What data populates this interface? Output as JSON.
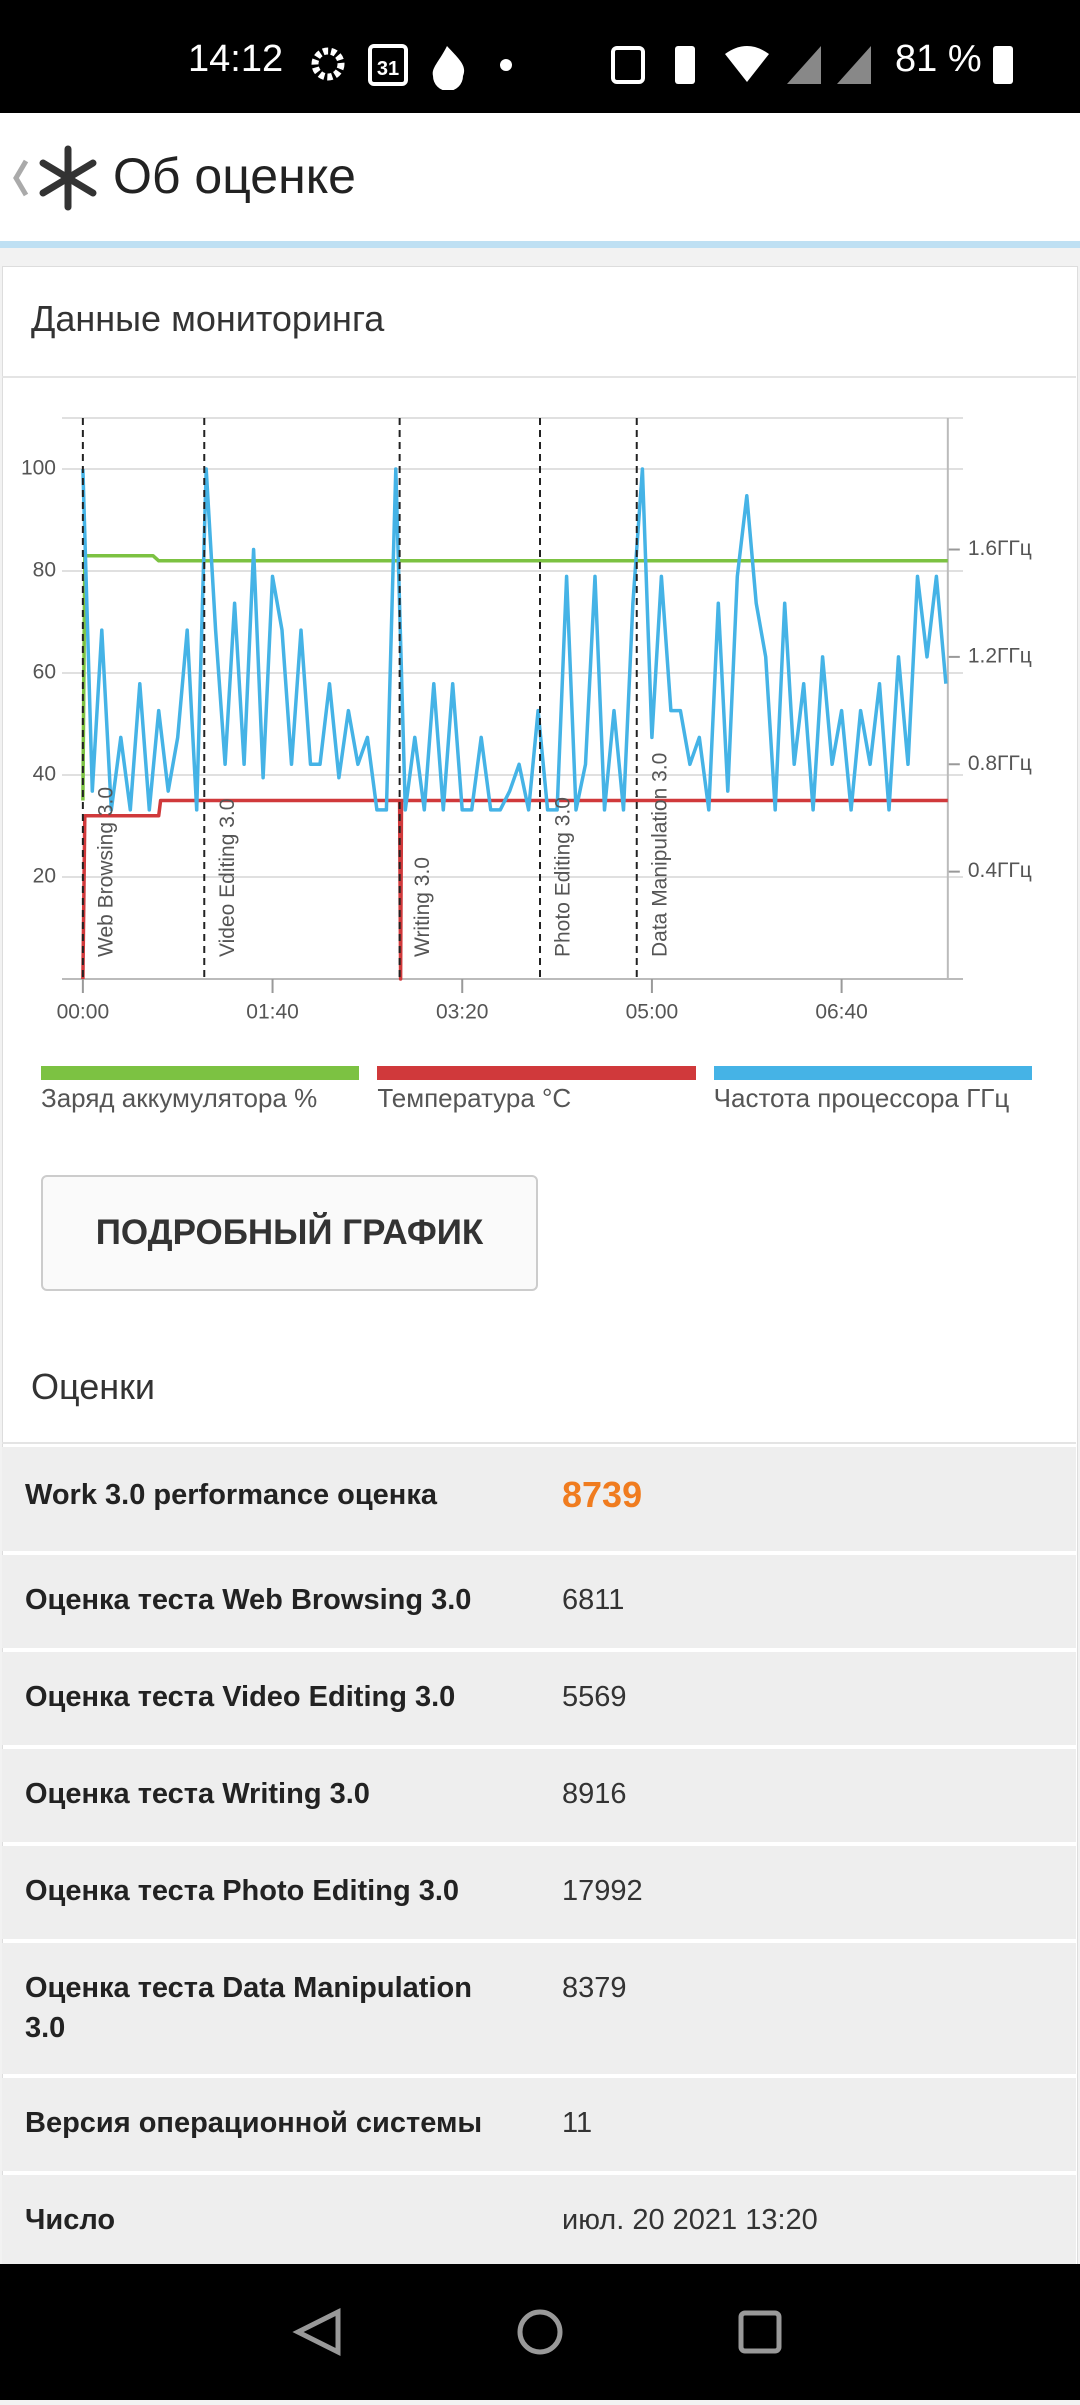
{
  "status_bar": {
    "time": "14:12",
    "calendar_day": "31",
    "battery": "81 %"
  },
  "header": {
    "title": "Об оценке"
  },
  "monitoring": {
    "title": "Данные мониторинга",
    "button": "ПОДРОБНЫЙ ГРАФИК"
  },
  "chart_data": {
    "type": "line",
    "xlim": [
      -11,
      464
    ],
    "xticks": [
      {
        "value": 0,
        "label": "00:00"
      },
      {
        "value": 100,
        "label": "01:40"
      },
      {
        "value": 200,
        "label": "03:20"
      },
      {
        "value": 300,
        "label": "05:00"
      },
      {
        "value": 400,
        "label": "06:40"
      }
    ],
    "ylim": [
      0,
      110
    ],
    "yticks": [
      20,
      40,
      60,
      80,
      100
    ],
    "y2lim": [
      0,
      2.09
    ],
    "y2ticks": [
      {
        "value": 0.4,
        "label": "0.4ГГц"
      },
      {
        "value": 0.8,
        "label": "0.8ГГц"
      },
      {
        "value": 1.2,
        "label": "1.2ГГц"
      },
      {
        "value": 1.6,
        "label": "1.6ГГц"
      }
    ],
    "grid": true,
    "legend": "bottom",
    "annotations": [
      {
        "x": 0,
        "label": "Web Browsing 3.0"
      },
      {
        "x": 64,
        "label": "Video Editing 3.0"
      },
      {
        "x": 167,
        "label": "Writing 3.0"
      },
      {
        "x": 241,
        "label": "Photo Editing 3.0"
      },
      {
        "x": 292,
        "label": "Data Manipulation 3.0"
      }
    ],
    "series": [
      {
        "name": "Заряд аккумулятора %",
        "color": "#7cc242",
        "x": [
          0,
          1,
          37,
          40,
          456
        ],
        "values": [
          35,
          83,
          83,
          82,
          82
        ]
      },
      {
        "name": "Температура °C",
        "color": "#d0393b",
        "x": [
          0,
          1,
          40,
          41,
          167,
          167.5,
          168,
          456
        ],
        "values": [
          0,
          32,
          32,
          35,
          35,
          0,
          35,
          35
        ]
      },
      {
        "name": "Частота процессора ГГц",
        "color": "#45b3e6",
        "axis": "y2",
        "x": [
          0,
          5,
          10,
          15,
          20,
          25,
          30,
          35,
          40,
          45,
          50,
          55,
          60,
          65,
          70,
          75,
          80,
          85,
          90,
          95,
          100,
          105,
          110,
          115,
          120,
          125,
          130,
          135,
          140,
          145,
          150,
          155,
          160,
          165,
          170,
          175,
          180,
          185,
          190,
          195,
          200,
          205,
          210,
          215,
          220,
          225,
          230,
          235,
          240,
          245,
          250,
          255,
          260,
          265,
          270,
          275,
          280,
          285,
          290,
          295,
          300,
          305,
          310,
          315,
          320,
          325,
          330,
          335,
          340,
          345,
          350,
          355,
          360,
          365,
          370,
          375,
          380,
          385,
          390,
          395,
          400,
          405,
          410,
          415,
          420,
          425,
          430,
          435,
          440,
          445,
          450,
          455
        ],
        "values": [
          1.9,
          0.7,
          1.3,
          0.63,
          0.9,
          0.63,
          1.1,
          0.63,
          1.0,
          0.7,
          0.9,
          1.3,
          0.63,
          1.9,
          1.3,
          0.8,
          1.4,
          0.8,
          1.6,
          0.75,
          1.5,
          1.3,
          0.8,
          1.3,
          0.8,
          0.8,
          1.1,
          0.75,
          1.0,
          0.8,
          0.9,
          0.63,
          0.63,
          1.9,
          0.63,
          0.9,
          0.63,
          1.1,
          0.63,
          1.1,
          0.63,
          0.63,
          0.9,
          0.63,
          0.63,
          0.7,
          0.8,
          0.63,
          1.0,
          0.63,
          0.63,
          1.5,
          0.63,
          0.8,
          1.5,
          0.63,
          1.0,
          0.63,
          1.4,
          1.9,
          0.9,
          1.5,
          1.0,
          1.0,
          0.8,
          0.9,
          0.63,
          1.4,
          0.7,
          1.5,
          1.8,
          1.4,
          1.2,
          0.63,
          1.4,
          0.8,
          1.1,
          0.63,
          1.2,
          0.8,
          1.0,
          0.63,
          1.0,
          0.8,
          1.1,
          0.63,
          1.2,
          0.8,
          1.5,
          1.2,
          1.5,
          1.1
        ]
      }
    ]
  },
  "scores": {
    "title": "Оценки",
    "rows": [
      {
        "label": "Work 3.0 performance оценка",
        "value": 8739
      },
      {
        "label": "Оценка теста Web Browsing 3.0",
        "value": 6811
      },
      {
        "label": "Оценка теста Video Editing 3.0",
        "value": 5569
      },
      {
        "label": "Оценка теста Writing 3.0",
        "value": 8916
      },
      {
        "label": "Оценка теста Photo Editing 3.0",
        "value": 17992
      },
      {
        "label": "Оценка теста Data Manipulation 3.0",
        "value": 8379
      },
      {
        "label": "Версия операционной системы",
        "value": 11
      },
      {
        "label": "Число",
        "value": "июл. 20 2021 13:20"
      }
    ]
  }
}
